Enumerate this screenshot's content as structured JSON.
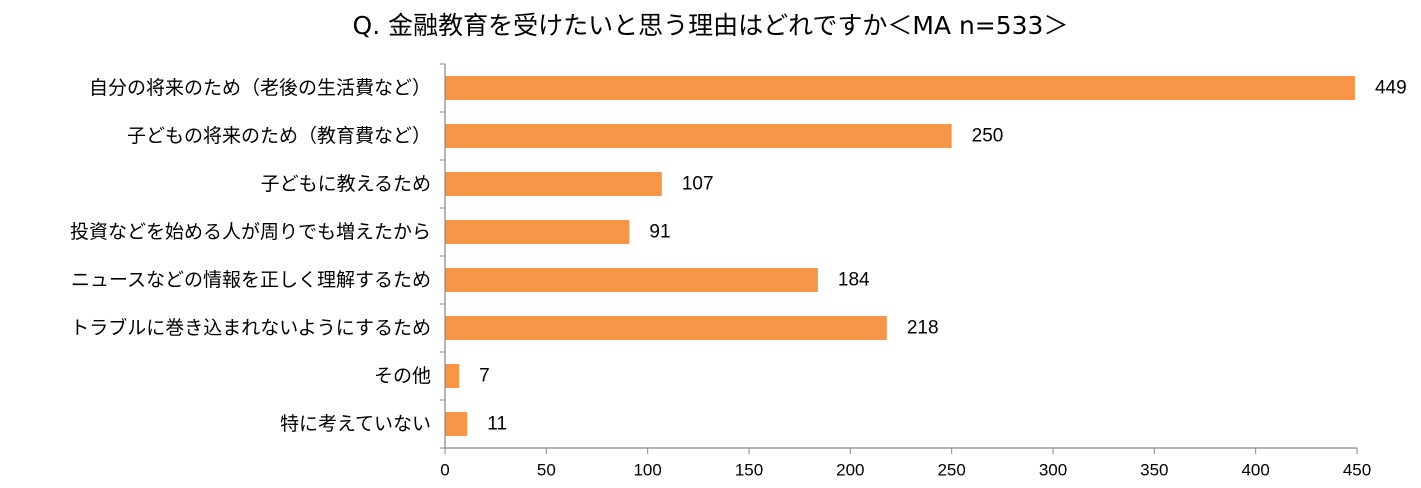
{
  "chart_data": {
    "type": "bar",
    "orientation": "horizontal",
    "title": "Q. 金融教育を受けたいと思う理由はどれですか＜MA n=533＞",
    "categories": [
      "自分の将来のため（老後の生活費など）",
      "子どもの将来のため（教育費など）",
      "子どもに教えるため",
      "投資などを始める人が周りでも増えたから",
      "ニュースなどの情報を正しく理解するため",
      "トラブルに巻き込まれないようにするため",
      "その他",
      "特に考えていない"
    ],
    "values": [
      449,
      250,
      107,
      91,
      184,
      218,
      7,
      11
    ],
    "value_labels": [
      "449",
      "250",
      "107",
      "91",
      "184",
      "218",
      "7",
      "11"
    ],
    "xlim": [
      0,
      450
    ],
    "xticks": [
      "0",
      "50",
      "100",
      "150",
      "200",
      "250",
      "300",
      "350",
      "400",
      "450"
    ],
    "grid": false,
    "legend": "none",
    "bar_color": "#F79646"
  }
}
